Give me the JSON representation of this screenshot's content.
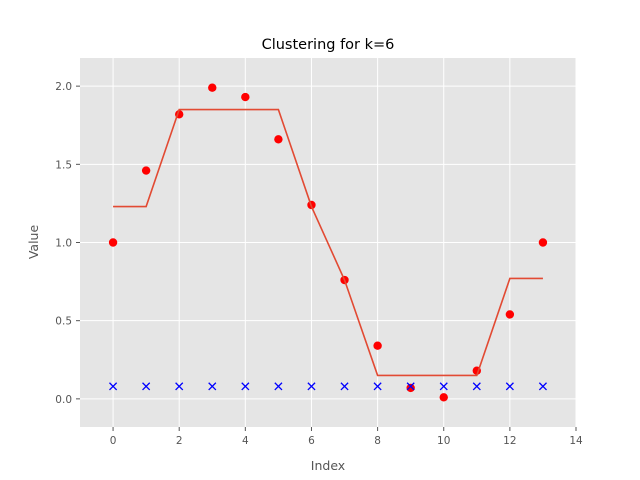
{
  "chart_data": {
    "type": "scatter",
    "title": "Clustering for k=6",
    "xlabel": "Index",
    "ylabel": "Value",
    "xlim": [
      -1,
      14
    ],
    "ylim": [
      -0.18,
      2.18
    ],
    "xticks": [
      0,
      2,
      4,
      6,
      8,
      10,
      12,
      14
    ],
    "yticks": [
      0.0,
      0.5,
      1.0,
      1.5,
      2.0
    ],
    "xtick_labels": [
      "0",
      "2",
      "4",
      "6",
      "8",
      "10",
      "12",
      "14"
    ],
    "ytick_labels": [
      "0.0",
      "0.5",
      "1.0",
      "1.5",
      "2.0"
    ],
    "grid": true,
    "style": "ggplot",
    "series": [
      {
        "kind": "scatter",
        "marker": "circle",
        "color": "#ff0000",
        "x": [
          0,
          1,
          2,
          3,
          4,
          5,
          6,
          7,
          8,
          9,
          10,
          11,
          12,
          13
        ],
        "y": [
          1.0,
          1.46,
          1.82,
          1.99,
          1.93,
          1.66,
          1.24,
          0.76,
          0.34,
          0.07,
          0.01,
          0.18,
          0.54,
          1.0
        ]
      },
      {
        "kind": "step-line",
        "color": "#e24a33",
        "x": [
          0,
          1,
          2,
          3,
          4,
          5,
          6,
          7,
          8,
          9,
          10,
          11,
          12,
          13
        ],
        "y": [
          1.23,
          1.23,
          1.85,
          1.85,
          1.85,
          1.85,
          1.23,
          0.76,
          0.15,
          0.15,
          0.15,
          0.15,
          0.77,
          0.77
        ]
      },
      {
        "kind": "scatter",
        "marker": "x",
        "color": "#0000ff",
        "x": [
          0,
          1,
          2,
          3,
          4,
          5,
          6,
          7,
          8,
          9,
          10,
          11,
          12,
          13
        ],
        "y": [
          0.08,
          0.08,
          0.08,
          0.08,
          0.08,
          0.08,
          0.08,
          0.08,
          0.08,
          0.08,
          0.08,
          0.08,
          0.08,
          0.08
        ]
      }
    ]
  }
}
